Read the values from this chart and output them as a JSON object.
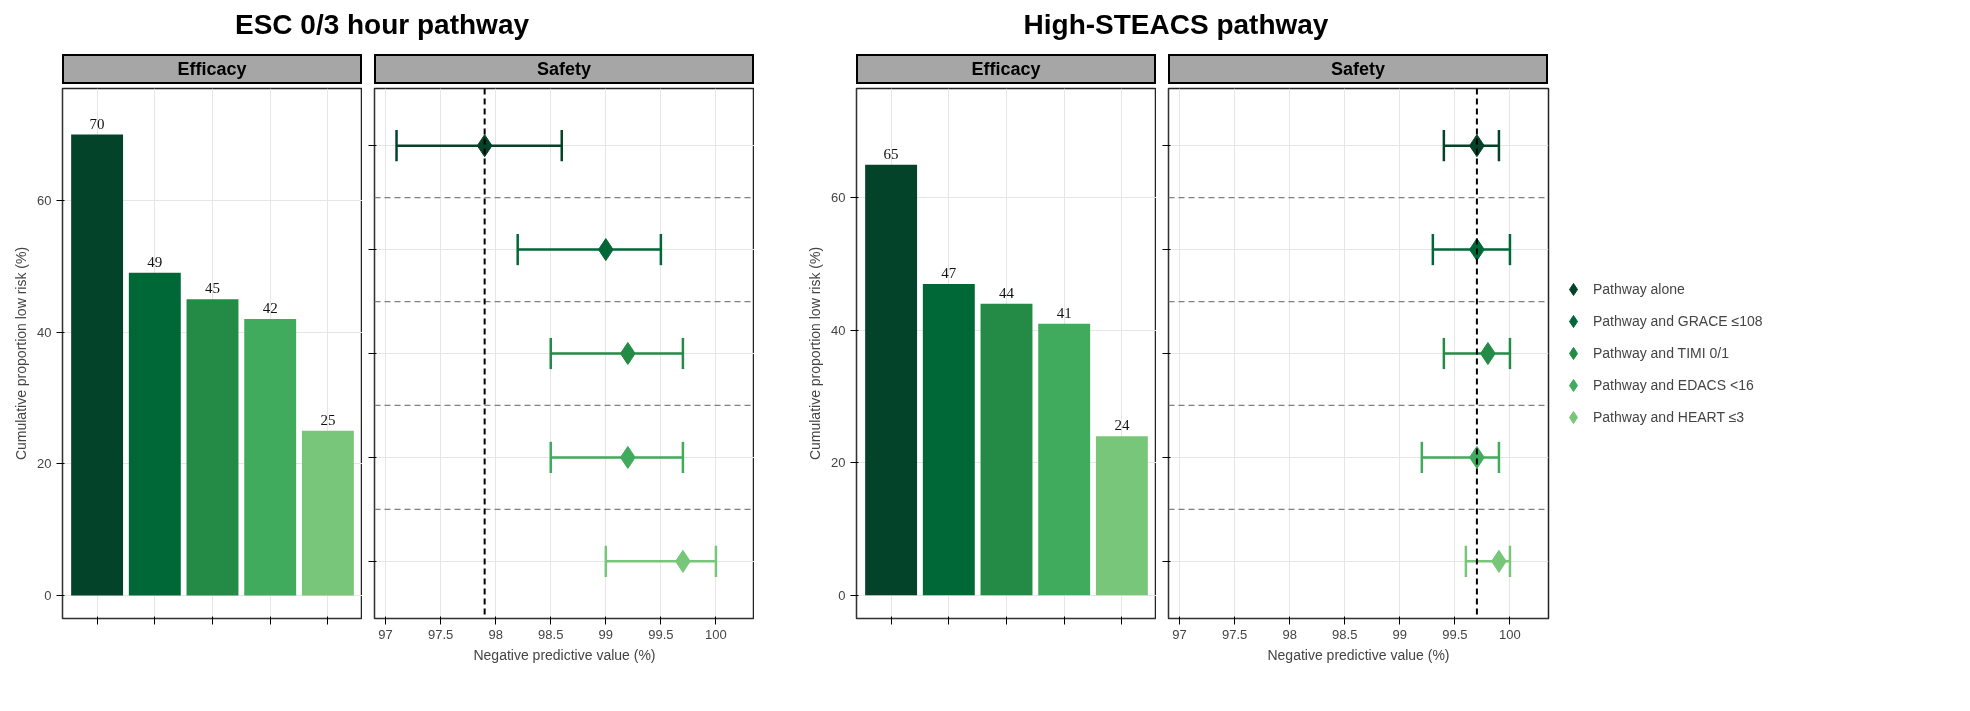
{
  "chart_data": [
    {
      "type": "bar",
      "title": "ESC 0/3 hour pathway",
      "subtitle": "Efficacy",
      "ylabel": "Cumulative proportion low risk (%)",
      "categories": [
        null,
        null,
        null,
        null,
        null
      ],
      "values": [
        70,
        49,
        45,
        42,
        25
      ],
      "colors": [
        "#03432a",
        "#006837",
        "#238b45",
        "#41ab5d",
        "#78c679"
      ],
      "ylim": [
        -3.5,
        77
      ],
      "yticks": [
        0,
        20,
        40,
        60
      ],
      "grid": true,
      "data_labels": true,
      "tick_labels": "y"
    },
    {
      "type": "scatter",
      "orientation": "horizontal",
      "subtitle": "Safety",
      "xlabel": "Negative predictive value (%)",
      "categories": [
        null,
        null,
        null,
        null,
        null
      ],
      "values": [
        97.9,
        99.0,
        99.2,
        99.2,
        99.7
      ],
      "errors": [
        [
          97.1,
          98.6
        ],
        [
          98.2,
          99.5
        ],
        [
          98.5,
          99.7
        ],
        [
          98.5,
          99.7
        ],
        [
          99.0,
          100.0
        ]
      ],
      "colors": [
        "#03432a",
        "#006837",
        "#238b45",
        "#41ab5d",
        "#78c679"
      ],
      "xlim": [
        96.9,
        100.35
      ],
      "xticks": [
        97,
        97.5,
        98,
        98.5,
        99,
        99.5,
        100
      ],
      "marker": "diamond",
      "ref_lines": [
        {
          "axis": "x",
          "value": 97.9,
          "color": "#000000",
          "line_style": "dashed"
        }
      ],
      "grid": true,
      "tick_labels": "x"
    },
    {
      "type": "bar",
      "title": "High-STEACS pathway",
      "subtitle": "Efficacy",
      "ylabel": "Cumulative proportion low risk (%)",
      "categories": [
        null,
        null,
        null,
        null,
        null
      ],
      "values": [
        65,
        47,
        44,
        41,
        24
      ],
      "colors": [
        "#03432a",
        "#006837",
        "#238b45",
        "#41ab5d",
        "#78c679"
      ],
      "ylim": [
        -3.5,
        76.5
      ],
      "yticks": [
        0,
        20,
        40,
        60
      ],
      "grid": true,
      "data_labels": true,
      "tick_labels": "y"
    },
    {
      "type": "scatter",
      "orientation": "horizontal",
      "subtitle": "Safety",
      "xlabel": "Negative predictive value (%)",
      "categories": [
        null,
        null,
        null,
        null,
        null
      ],
      "series": [
        {
          "name": "Pathway alone",
          "color": "#03432a",
          "values": [
            99.7,
            null,
            null,
            null,
            null
          ],
          "errors": [
            [
              99.4,
              99.9
            ],
            null,
            null,
            null,
            null
          ]
        },
        {
          "name": "Pathway and GRACE ≤108",
          "color": "#006837",
          "values": [
            null,
            99.7,
            null,
            null,
            null
          ],
          "errors": [
            null,
            [
              99.3,
              100.0
            ],
            null,
            null,
            null
          ]
        },
        {
          "name": "Pathway and TIMI 0/1",
          "color": "#238b45",
          "values": [
            null,
            null,
            99.8,
            null,
            null
          ],
          "errors": [
            null,
            null,
            [
              99.4,
              100.0
            ],
            null,
            null
          ]
        },
        {
          "name": "Pathway and EDACS <16",
          "color": "#41ab5d",
          "values": [
            null,
            null,
            null,
            99.7,
            null
          ],
          "errors": [
            null,
            null,
            null,
            [
              99.2,
              99.9
            ],
            null
          ]
        },
        {
          "name": "Pathway and HEART ≤3",
          "color": "#78c679",
          "values": [
            null,
            null,
            null,
            null,
            99.9
          ],
          "errors": [
            null,
            null,
            null,
            null,
            [
              99.6,
              100.0
            ]
          ]
        }
      ],
      "xlim": [
        96.9,
        100.35
      ],
      "xticks": [
        97,
        97.5,
        98,
        98.5,
        99,
        99.5,
        100
      ],
      "marker": "diamond",
      "ref_lines": [
        {
          "axis": "x",
          "value": 99.7,
          "color": "#000000",
          "line_style": "dashed"
        }
      ],
      "grid": true,
      "tick_labels": "x",
      "legend": "right"
    }
  ]
}
